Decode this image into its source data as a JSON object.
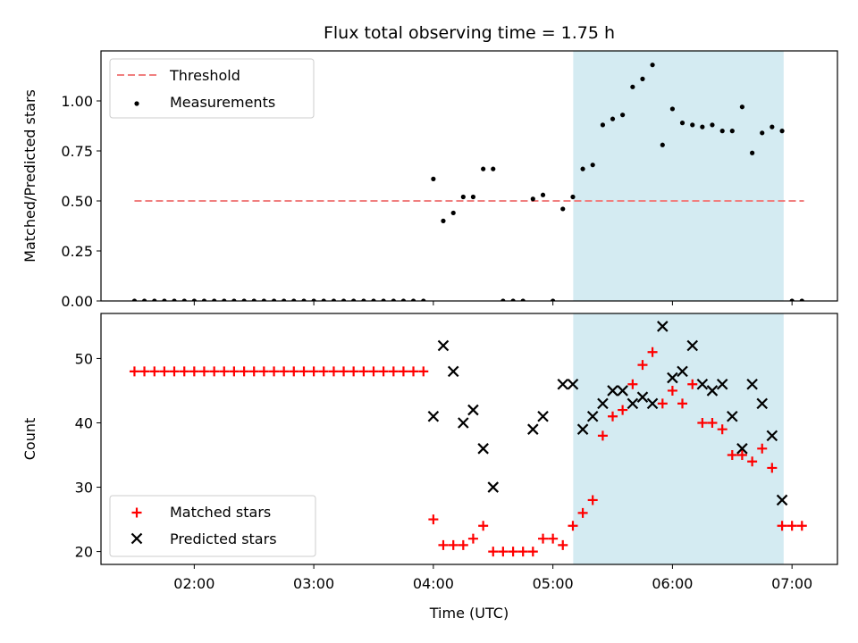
{
  "chart_data": [
    {
      "type": "scatter",
      "title": "Flux total observing time = 1.75 h",
      "ylabel": "Matched/Predicted stars",
      "ylim": [
        0,
        1.25
      ],
      "y_ticks": [
        0,
        0.25,
        0.5,
        0.75,
        1.0
      ],
      "y_tick_labels": [
        "0.00",
        "0.25",
        "0.50",
        "0.75",
        "1.00"
      ],
      "xlim": [
        1.22,
        7.38
      ],
      "highlight_span": [
        5.17,
        6.93
      ],
      "highlight_color": "#d4ebf2",
      "threshold": {
        "name": "Threshold",
        "value": 0.5,
        "x_range": [
          1.5,
          7.1
        ],
        "color": "#f07f7f"
      },
      "series": [
        {
          "name": "Measurements",
          "color": "#000000",
          "x": [
            1.5,
            1.583,
            1.667,
            1.75,
            1.833,
            1.917,
            2.0,
            2.083,
            2.167,
            2.25,
            2.333,
            2.417,
            2.5,
            2.583,
            2.667,
            2.75,
            2.833,
            2.917,
            3.0,
            3.083,
            3.167,
            3.25,
            3.333,
            3.417,
            3.5,
            3.583,
            3.667,
            3.75,
            3.833,
            3.917,
            4.0,
            4.083,
            4.167,
            4.25,
            4.333,
            4.417,
            4.5,
            4.583,
            4.667,
            4.75,
            4.833,
            4.917,
            5.0,
            5.083,
            5.167,
            5.25,
            5.333,
            5.417,
            5.5,
            5.583,
            5.667,
            5.75,
            5.833,
            5.917,
            6.0,
            6.083,
            6.167,
            6.25,
            6.333,
            6.417,
            6.5,
            6.583,
            6.667,
            6.75,
            6.833,
            6.917,
            7.0,
            7.083
          ],
          "y": [
            0,
            0,
            0,
            0,
            0,
            0,
            0,
            0,
            0,
            0,
            0,
            0,
            0,
            0,
            0,
            0,
            0,
            0,
            0,
            0,
            0,
            0,
            0,
            0,
            0,
            0,
            0,
            0,
            0,
            0,
            0.61,
            0.4,
            0.44,
            0.52,
            0.52,
            0.66,
            0.66,
            0,
            0,
            0,
            0.51,
            0.53,
            0,
            0.46,
            0.52,
            0.66,
            0.68,
            0.88,
            0.91,
            0.93,
            1.07,
            1.11,
            1.18,
            0.78,
            0.96,
            0.89,
            0.88,
            0.87,
            0.88,
            0.85,
            0.85,
            0.97,
            0.74,
            0.84,
            0.87,
            0.85,
            0,
            0
          ]
        }
      ]
    },
    {
      "type": "scatter",
      "xlabel": "Time (UTC)",
      "ylabel": "Count",
      "ylim": [
        18,
        57
      ],
      "y_ticks": [
        20,
        30,
        40,
        50
      ],
      "y_tick_labels": [
        "20",
        "30",
        "40",
        "50"
      ],
      "xlim": [
        1.22,
        7.38
      ],
      "x_ticks": [
        2,
        3,
        4,
        5,
        6,
        7
      ],
      "x_tick_labels": [
        "02:00",
        "03:00",
        "04:00",
        "05:00",
        "06:00",
        "07:00"
      ],
      "highlight_span": [
        5.17,
        6.93
      ],
      "highlight_color": "#d4ebf2",
      "series": [
        {
          "name": "Matched stars",
          "marker": "+",
          "color": "#ff0000",
          "x": [
            1.5,
            1.583,
            1.667,
            1.75,
            1.833,
            1.917,
            2.0,
            2.083,
            2.167,
            2.25,
            2.333,
            2.417,
            2.5,
            2.583,
            2.667,
            2.75,
            2.833,
            2.917,
            3.0,
            3.083,
            3.167,
            3.25,
            3.333,
            3.417,
            3.5,
            3.583,
            3.667,
            3.75,
            3.833,
            3.917,
            4.0,
            4.083,
            4.167,
            4.25,
            4.333,
            4.417,
            4.5,
            4.583,
            4.667,
            4.75,
            4.833,
            4.917,
            5.0,
            5.083,
            5.167,
            5.25,
            5.333,
            5.417,
            5.5,
            5.583,
            5.667,
            5.75,
            5.833,
            5.917,
            6.0,
            6.083,
            6.167,
            6.25,
            6.333,
            6.417,
            6.5,
            6.583,
            6.667,
            6.75,
            6.833,
            6.917,
            7.0,
            7.083
          ],
          "y": [
            48,
            48,
            48,
            48,
            48,
            48,
            48,
            48,
            48,
            48,
            48,
            48,
            48,
            48,
            48,
            48,
            48,
            48,
            48,
            48,
            48,
            48,
            48,
            48,
            48,
            48,
            48,
            48,
            48,
            48,
            25,
            21,
            21,
            21,
            22,
            24,
            20,
            20,
            20,
            20,
            20,
            22,
            22,
            21,
            24,
            26,
            28,
            38,
            41,
            42,
            46,
            49,
            51,
            43,
            45,
            43,
            46,
            40,
            40,
            39,
            35,
            35,
            34,
            36,
            33,
            24,
            24,
            24
          ]
        },
        {
          "name": "Predicted stars",
          "marker": "x",
          "color": "#000000",
          "x": [
            4.0,
            4.083,
            4.167,
            4.25,
            4.333,
            4.417,
            4.5,
            4.833,
            4.917,
            5.083,
            5.167,
            5.25,
            5.333,
            5.417,
            5.5,
            5.583,
            5.667,
            5.75,
            5.833,
            5.917,
            6.0,
            6.083,
            6.167,
            6.25,
            6.333,
            6.417,
            6.5,
            6.583,
            6.667,
            6.75,
            6.833,
            6.917
          ],
          "y": [
            41,
            52,
            48,
            40,
            42,
            36,
            30,
            39,
            41,
            46,
            46,
            39,
            41,
            43,
            45,
            45,
            43,
            44,
            43,
            55,
            47,
            48,
            52,
            46,
            45,
            46,
            41,
            36,
            46,
            43,
            38,
            28
          ]
        }
      ]
    }
  ]
}
